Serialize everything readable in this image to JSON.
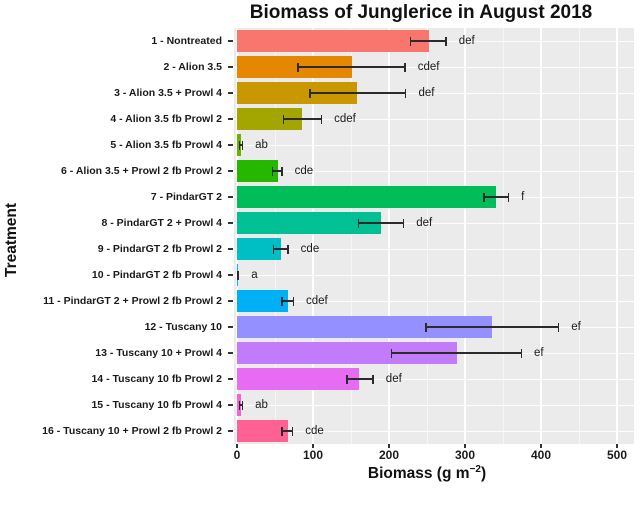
{
  "title": "Biomass of Junglerice in August 2018",
  "y_axis_title": "Treatment",
  "x_axis_title": {
    "prefix": "Biomass (g m",
    "sup": "−2",
    "suffix": ")"
  },
  "chart_data": {
    "type": "bar",
    "orientation": "horizontal",
    "title": "Biomass of Junglerice in August 2018",
    "xlabel": "Biomass (g m^-2)",
    "ylabel": "Treatment",
    "xlim": [
      0,
      525
    ],
    "x_ticks": [
      0,
      100,
      200,
      300,
      400,
      500
    ],
    "x_minor_ticks": [
      50,
      150,
      250,
      350,
      450
    ],
    "grid": "vertical major + minor, white on gray panel",
    "legend": "none",
    "panel_bg": "#EBEBEB",
    "categories": [
      "1 - Nontreated",
      "2 - Alion 3.5",
      "3 - Alion 3.5 + Prowl 4",
      "4 - Alion 3.5 fb Prowl 2",
      "5 - Alion 3.5 fb Prowl 4",
      "6 - Alion 3.5 + Prowl 2 fb Prowl 2",
      "7 - PindarGT 2",
      "8 - PindarGT 2 + Prowl 4",
      "9 - PindarGT 2 fb Prowl 2",
      "10 - PindarGT 2 fb Prowl 4",
      "11 - PindarGT 2 + Prowl 2 fb Prowl 2",
      "12 - Tuscany 10",
      "13 - Tuscany 10 + Prowl 4",
      "14 - Tuscany 10 fb Prowl 2",
      "15 - Tuscany 10 fb Prowl 4",
      "16 - Tuscany 10 + Prowl 2 fb Prowl 2"
    ],
    "values": [
      252,
      151,
      158,
      86,
      5,
      54,
      341,
      190,
      58,
      1,
      67,
      336,
      289,
      161,
      5,
      67
    ],
    "error_low": [
      227,
      79,
      95,
      60,
      2,
      46,
      324,
      159,
      47,
      0,
      58,
      248,
      202,
      144,
      2,
      58
    ],
    "error_high": [
      276,
      222,
      223,
      112,
      8,
      60,
      358,
      220,
      68,
      3,
      75,
      424,
      375,
      180,
      8,
      74
    ],
    "sig_letters": [
      "def",
      "cdef",
      "def",
      "cdef",
      "ab",
      "cde",
      "f",
      "def",
      "cde",
      "a",
      "cdef",
      "ef",
      "ef",
      "def",
      "ab",
      "cde"
    ],
    "bar_colors": [
      "#F8766D",
      "#E58700",
      "#C99800",
      "#A3A500",
      "#6BB100",
      "#26B700",
      "#00BC59",
      "#00C094",
      "#00BFC4",
      "#00B4EF",
      "#00B0F6",
      "#9590FF",
      "#C27BFA",
      "#E76BF3",
      "#FB61D7",
      "#FF6195"
    ]
  }
}
